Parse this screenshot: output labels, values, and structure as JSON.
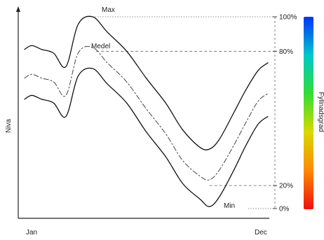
{
  "chart_data": {
    "type": "line",
    "xlabel": "",
    "ylabel": "Niva",
    "x_ticks": [
      "Jan",
      "Dec"
    ],
    "ylim": [
      0,
      100
    ],
    "x": [
      0,
      0.03,
      0.07,
      0.12,
      0.17,
      0.22,
      0.28,
      0.34,
      0.42,
      0.5,
      0.58,
      0.65,
      0.72,
      0.76,
      0.8,
      0.86,
      0.91,
      0.96,
      1.0
    ],
    "series": [
      {
        "name": "Max",
        "style": "solid",
        "values": [
          83,
          85,
          83,
          81,
          74,
          96,
          100,
          92,
          82,
          68,
          55,
          41,
          32,
          31,
          36,
          50,
          62,
          72,
          76
        ]
      },
      {
        "name": "Medel",
        "style": "dashed",
        "values": [
          68,
          70,
          68,
          66,
          59,
          81,
          84,
          76,
          66,
          52,
          39,
          25,
          17,
          15,
          20,
          33,
          45,
          56,
          60
        ]
      },
      {
        "name": "Min",
        "style": "solid",
        "values": [
          57,
          59,
          57,
          55,
          48,
          69,
          73,
          65,
          55,
          40,
          27,
          13,
          5,
          1,
          6,
          20,
          33,
          44,
          48
        ]
      }
    ],
    "reference_lines": [
      {
        "label": "100%",
        "value": 100,
        "style": "dotted"
      },
      {
        "label": "80%",
        "value": 82,
        "style": "dashed"
      },
      {
        "label": "20%",
        "value": 12,
        "style": "dashed"
      },
      {
        "label": "0%",
        "value": 0,
        "style": "dotted"
      }
    ],
    "annotations": [
      "Max",
      "Medel",
      "Min"
    ],
    "colorbar": {
      "label": "Fyllnadsgrad",
      "colors": [
        "#ee1111",
        "#ff8800",
        "#d9d900",
        "#33dd33",
        "#00c8c8",
        "#0033ff"
      ]
    },
    "grid": false,
    "legend": "none"
  }
}
